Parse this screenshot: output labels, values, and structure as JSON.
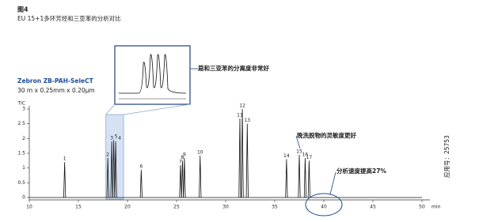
{
  "title": "图4",
  "subtitle": "EU 15+1多环芳烃和三亚苯的分析对比",
  "column_name": "Zebron ZB-PAH-SeleCT",
  "column_spec": "30 m x 0.25mm x 0.20μm",
  "app_number": "应用号：25753",
  "chart_data": {
    "type": "chromatogram",
    "y_label": "TIC",
    "x_label": "min",
    "xlim": [
      10,
      50
    ],
    "xticks": [
      10,
      15,
      20,
      25,
      30,
      35,
      40,
      45,
      50
    ],
    "ylim": [
      0,
      3
    ],
    "yticks": [
      0,
      0.5,
      1,
      1.5,
      2,
      2.5,
      3
    ],
    "color": "#111111",
    "peaks": {
      "labels": [
        "1",
        "2",
        "3",
        "5",
        "4",
        "6",
        "7",
        "8",
        "9",
        "10",
        "11",
        "12",
        "13",
        "14",
        "15",
        "16",
        "17"
      ],
      "x": [
        13.6,
        18.0,
        18.4,
        18.6,
        18.8,
        21.4,
        25.4,
        25.6,
        25.8,
        27.4,
        31.45,
        31.7,
        32.2,
        36.2,
        37.5,
        38.1,
        38.5
      ],
      "values": [
        1.2,
        1.34,
        1.9,
        1.95,
        1.9,
        0.94,
        1.1,
        1.25,
        1.34,
        1.42,
        2.68,
        3.0,
        2.5,
        1.3,
        1.45,
        1.34,
        1.25
      ]
    },
    "highlight": [
      17.8,
      19.6
    ],
    "circle_x": 40,
    "annotations": [
      "䓛和三亚苯的分离度非常好",
      "晚洗脱物的灵敏度更好",
      "分析速度提高27%"
    ]
  }
}
